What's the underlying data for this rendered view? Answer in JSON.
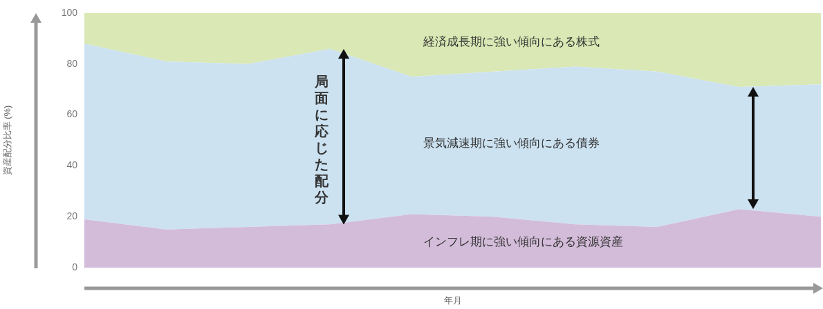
{
  "chart_data": {
    "type": "area",
    "stacked": true,
    "ylabel": "資産配分比率 (%)",
    "xlabel": "年月",
    "categories": [
      null,
      null,
      null,
      null,
      null,
      null,
      null,
      null,
      null,
      null
    ],
    "series": [
      {
        "name": "インフレ期に強い傾向にある資源資産",
        "color": "#d3bcd9",
        "values": [
          19,
          15,
          16,
          17,
          21,
          20,
          17,
          16,
          23,
          20
        ]
      },
      {
        "name": "景気減速期に強い傾向にある債券",
        "color": "#cce2f1",
        "values": [
          69,
          66,
          64,
          69,
          54,
          57,
          62,
          61,
          48,
          52
        ]
      },
      {
        "name": "経済成長期に強い傾向にある株式",
        "color": "#d9e8b4",
        "values": [
          12,
          19,
          20,
          14,
          25,
          23,
          21,
          23,
          29,
          28
        ]
      }
    ],
    "ylim": [
      0,
      100
    ],
    "yticks": [
      0,
      20,
      40,
      60,
      80,
      100
    ],
    "grid": false,
    "legend": false,
    "annotations": [
      "局面に応じた配分"
    ]
  }
}
